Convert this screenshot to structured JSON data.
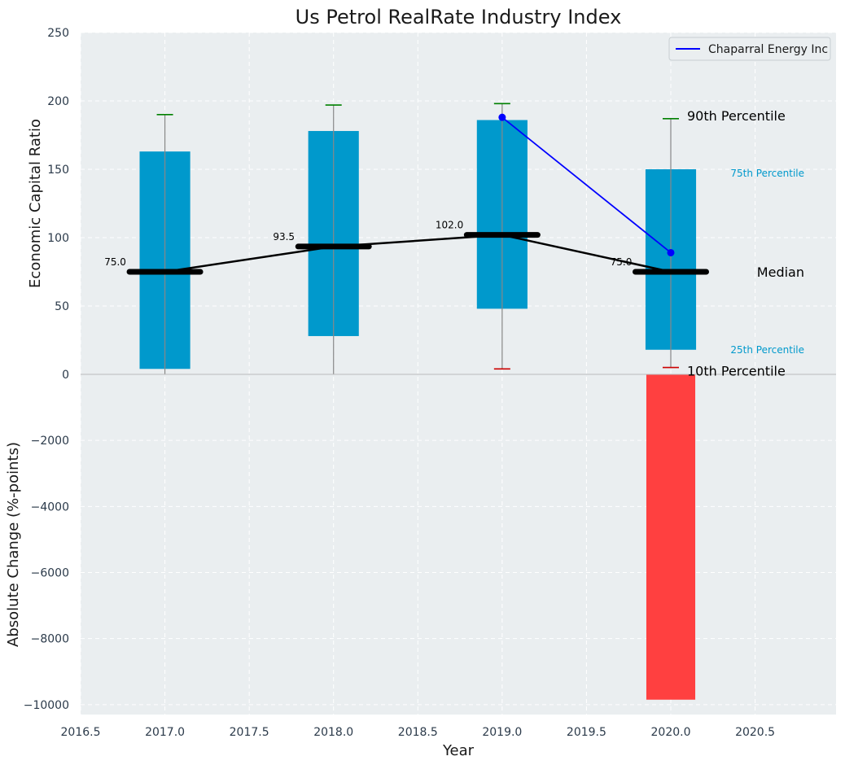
{
  "chart_data": {
    "type": "box-and-bar",
    "title": "Us Petrol RealRate Industry Index",
    "xlabel": "Year",
    "x_ticks": [
      2016.5,
      2017.0,
      2017.5,
      2018.0,
      2018.5,
      2019.0,
      2019.5,
      2020.0,
      2020.5
    ],
    "x_tick_labels": [
      "2016.5",
      "2017.0",
      "2017.5",
      "2018.0",
      "2018.5",
      "2019.0",
      "2019.5",
      "2020.0",
      "2020.5"
    ],
    "xlim": [
      2016.5,
      2020.98
    ],
    "top": {
      "ylabel": "Economic Capital Ratio",
      "ylim": [
        0,
        250
      ],
      "y_ticks": [
        0,
        50,
        100,
        150,
        200,
        250
      ],
      "grid": true,
      "years": [
        2017,
        2018,
        2019,
        2020
      ],
      "p10": [
        0,
        0,
        4,
        5
      ],
      "p25": [
        4,
        28,
        48,
        18
      ],
      "median": [
        75.0,
        93.5,
        102.0,
        75.0
      ],
      "median_labels": [
        "75.0",
        "93.5",
        "102.0",
        "75.0"
      ],
      "p75": [
        163,
        178,
        186,
        150
      ],
      "p90": [
        190,
        197,
        198,
        187
      ],
      "company_series": {
        "name": "Chaparral Energy Inc",
        "color": "#0000ff",
        "x": [
          2019,
          2020
        ],
        "y": [
          188,
          89
        ]
      },
      "annotations": {
        "p90": "90th Percentile",
        "p75": "75th Percentile",
        "median": "Median",
        "p25": "25th Percentile",
        "p10": "10th Percentile"
      },
      "legend_position": "top-right"
    },
    "bottom": {
      "ylabel": "Absolute Change (%-points)",
      "ylim": [
        -10300,
        0
      ],
      "y_ticks": [
        0,
        -2000,
        -4000,
        -6000,
        -8000,
        -10000
      ],
      "y_tick_labels": [
        "0",
        "−2000",
        "−4000",
        "−6000",
        "−8000",
        "−10000"
      ],
      "grid": true,
      "bars": [
        {
          "x": 2020,
          "value": -9850,
          "color": "#ff4040"
        }
      ]
    },
    "colors": {
      "box": "#0099cc",
      "median_line": "#000000",
      "whisker_top": "#008000",
      "whisker_bottom": "#cc0000",
      "background": "#eaeef0"
    }
  }
}
